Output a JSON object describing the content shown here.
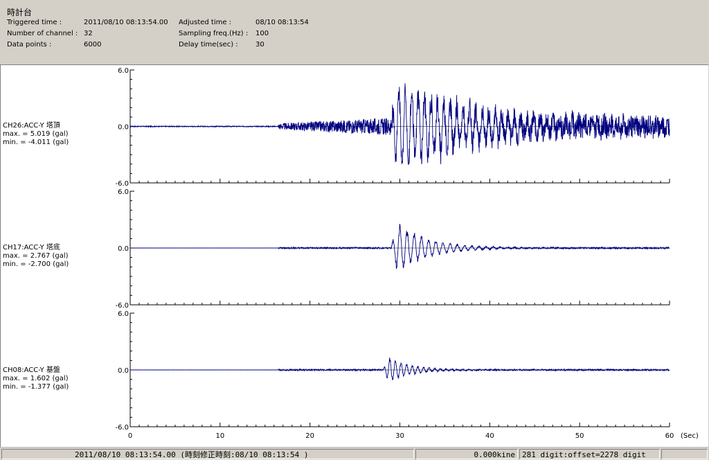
{
  "header": {
    "title": "時計台",
    "rows": [
      {
        "label": "Triggered time :",
        "value": "2011/08/10 08:13:54.00",
        "label2": "Adjusted time :",
        "value2": "08/10 08:13:54"
      },
      {
        "label": "Number of channel :",
        "value": "32",
        "label2": "Sampling freq.(Hz) :",
        "value2": "100"
      },
      {
        "label": "Data points :",
        "value": "6000",
        "label2": "Delay time(sec) :",
        "value2": "30"
      }
    ]
  },
  "channels": [
    {
      "name": "CH26:ACC-Y 塔頂",
      "max": "max. = 5.019 (gal)",
      "min": "min. = -4.011 (gal)"
    },
    {
      "name": "CH17:ACC-Y 塔底",
      "max": "max. = 2.767 (gal)",
      "min": "min. = -2.700 (gal)"
    },
    {
      "name": "CH08:ACC-Y 基盤",
      "max": "max. = 1.602 (gal)",
      "min": "min. = -1.377 (gal)"
    }
  ],
  "chart_data": {
    "type": "line",
    "x_unit": "(Sec)",
    "xlim": [
      0,
      60
    ],
    "x_ticks": [
      "0",
      "10",
      "20",
      "30",
      "40",
      "50",
      "60"
    ],
    "y_ticks": [
      "6.0",
      "0.0",
      "-6.0"
    ],
    "ylim": [
      -6,
      6
    ],
    "line_color": "#000080",
    "series": [
      {
        "name": "CH26:ACC-Y 塔頂",
        "max": 5.019,
        "min": -4.011,
        "peak_time": 30.2
      },
      {
        "name": "CH17:ACC-Y 塔底",
        "max": 2.767,
        "min": -2.7,
        "peak_time": 30.2
      },
      {
        "name": "CH08:ACC-Y 基盤",
        "max": 1.602,
        "min": -1.377,
        "peak_time": 29.3
      }
    ]
  },
  "status": {
    "time": "2011/08/10 08:13:54.00 (時刻修正時刻:08/10 08:13:54 )",
    "kine": "0.000kine",
    "digit": "281 digit:offset=2278 digit"
  }
}
